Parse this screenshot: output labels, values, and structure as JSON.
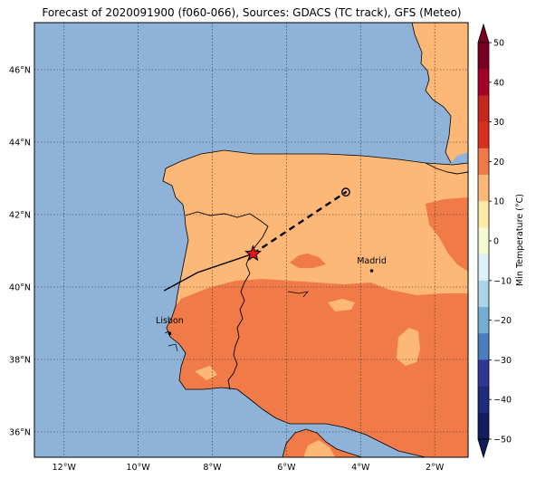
{
  "title": "Forecast of 2020091900 (f060-066), Sources: GDACS (TC track), GFS (Meteo)",
  "colors": {
    "sea": "#8fb3d8",
    "land_10_20": "#fdb878",
    "land_20_30": "#f07a48",
    "border": "#000000",
    "grid": "#333333"
  },
  "map": {
    "lon_range": [
      -12.8,
      -1.1
    ],
    "lat_range": [
      35.3,
      47.3
    ],
    "lon_ticks": [
      {
        "value": -12,
        "label": "12°W"
      },
      {
        "value": -10,
        "label": "10°W"
      },
      {
        "value": -8,
        "label": "8°W"
      },
      {
        "value": -6,
        "label": "6°W"
      },
      {
        "value": -4,
        "label": "4°W"
      },
      {
        "value": -2,
        "label": "2°W"
      }
    ],
    "lat_ticks": [
      {
        "value": 36,
        "label": "36°N"
      },
      {
        "value": 38,
        "label": "38°N"
      },
      {
        "value": 40,
        "label": "40°N"
      },
      {
        "value": 42,
        "label": "42°N"
      },
      {
        "value": 44,
        "label": "44°N"
      },
      {
        "value": 46,
        "label": "46°N"
      }
    ],
    "cities": [
      {
        "name": "Madrid",
        "lon": -3.7,
        "lat": 40.45
      },
      {
        "name": "Lisbon",
        "lon": -9.15,
        "lat": 38.72
      }
    ],
    "track_observed": [
      [
        -9.3,
        39.9
      ],
      [
        -8.4,
        40.4
      ],
      [
        -6.9,
        40.92
      ]
    ],
    "track_forecast": [
      [
        -6.9,
        40.92
      ],
      [
        -4.4,
        42.62
      ]
    ],
    "storm_position": {
      "lon": -6.9,
      "lat": 40.92
    },
    "forecast_end": {
      "lon": -4.4,
      "lat": 42.62
    }
  },
  "colorbar": {
    "label": "Min Temperature (°C)",
    "ticks": [
      "50",
      "40",
      "30",
      "20",
      "10",
      "0",
      "−10",
      "−20",
      "−30",
      "−40",
      "−50"
    ],
    "levels": [
      {
        "color": "#7a0021"
      },
      {
        "color": "#a50026"
      },
      {
        "color": "#c7271f"
      },
      {
        "color": "#d7301f"
      },
      {
        "color": "#f07a48"
      },
      {
        "color": "#fdb878"
      },
      {
        "color": "#fee9a6"
      },
      {
        "color": "#f4fbd2"
      },
      {
        "color": "#ddf1f7"
      },
      {
        "color": "#abd4e8"
      },
      {
        "color": "#74aed3"
      },
      {
        "color": "#4a7dba"
      },
      {
        "color": "#313695"
      },
      {
        "color": "#1e2b7a"
      },
      {
        "color": "#111e5e"
      }
    ]
  }
}
